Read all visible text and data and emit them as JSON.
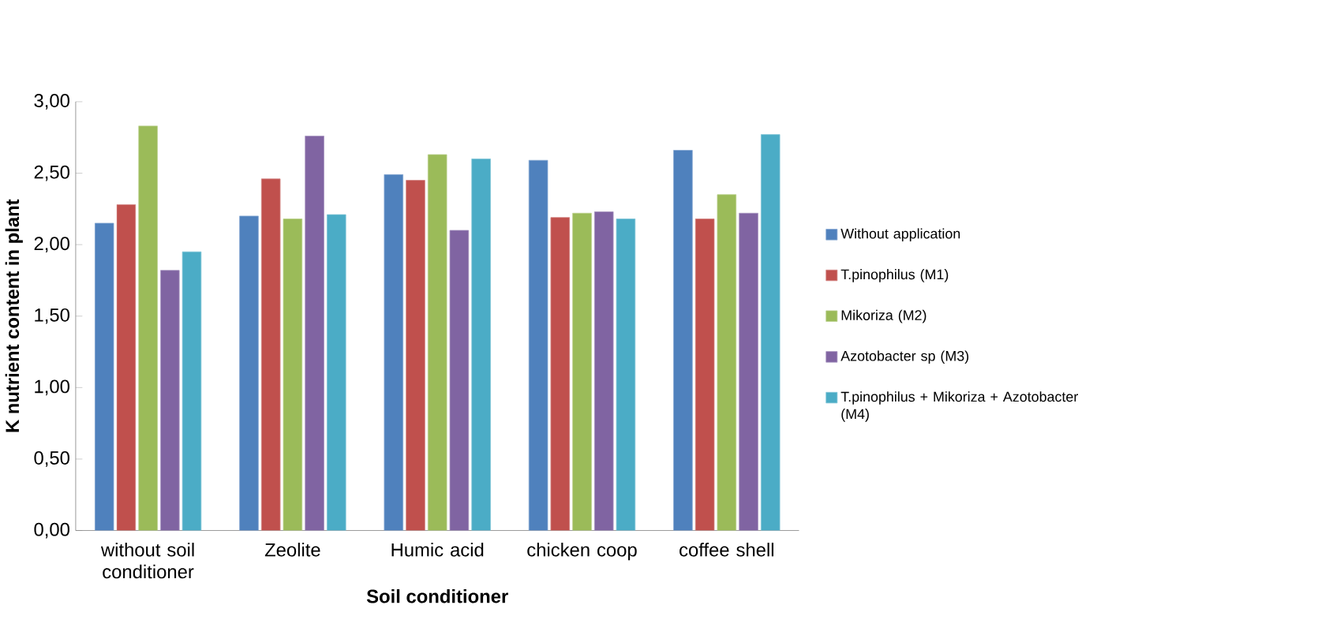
{
  "chart_data": {
    "type": "bar",
    "xlabel": "Soil conditioner",
    "ylabel": "K nutrient content in plant",
    "categories": [
      "without soil conditioner",
      "Zeolite",
      "Humic acid",
      "chicken coop",
      "coffee shell"
    ],
    "series": [
      {
        "name": "Without application",
        "color": "#4f81bd",
        "values": [
          2.15,
          2.2,
          2.49,
          2.59,
          2.66
        ]
      },
      {
        "name": "T.pinophilus (M1)",
        "color": "#c0504d",
        "values": [
          2.28,
          2.46,
          2.45,
          2.19,
          2.18
        ]
      },
      {
        "name": "Mikoriza (M2)",
        "color": "#9bbb59",
        "values": [
          2.83,
          2.18,
          2.63,
          2.22,
          2.35
        ]
      },
      {
        "name": "Azotobacter sp (M3)",
        "color": "#8064a2",
        "values": [
          1.82,
          2.76,
          2.1,
          2.23,
          2.22
        ]
      },
      {
        "name": "T.pinophilus + Mikoriza + Azotobacter (M4)",
        "color": "#4bacc6",
        "values": [
          1.95,
          2.21,
          2.6,
          2.18,
          2.77
        ]
      }
    ],
    "ylim": [
      0,
      3
    ],
    "yticks": [
      {
        "value": 0,
        "label": "0,00"
      },
      {
        "value": 0.5,
        "label": "0,50"
      },
      {
        "value": 1,
        "label": "1,00"
      },
      {
        "value": 1.5,
        "label": "1,50"
      },
      {
        "value": 2,
        "label": "2,00"
      },
      {
        "value": 2.5,
        "label": "2,50"
      },
      {
        "value": 3,
        "label": "3,00"
      }
    ],
    "legend": "right",
    "grid": false
  }
}
